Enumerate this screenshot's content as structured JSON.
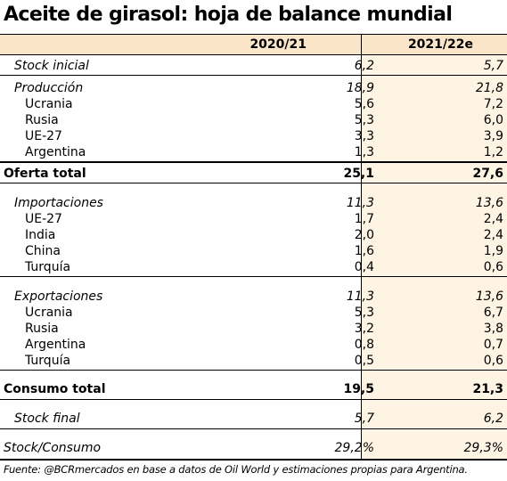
{
  "title": "Aceite de girasol: hoja de balance mundial",
  "columns": [
    "2020/21",
    "2021/22e"
  ],
  "rows": [
    {
      "label": "Stock inicial",
      "v1": "6,2",
      "v2": "5,7"
    },
    {
      "label": "Producción",
      "v1": "18,9",
      "v2": "21,8"
    },
    {
      "label": "Ucrania",
      "v1": "5,6",
      "v2": "7,2"
    },
    {
      "label": "Rusia",
      "v1": "5,3",
      "v2": "6,0"
    },
    {
      "label": "UE-27",
      "v1": "3,3",
      "v2": "3,9"
    },
    {
      "label": "Argentina",
      "v1": "1,3",
      "v2": "1,2"
    },
    {
      "label": "Oferta total",
      "v1": "25,1",
      "v2": "27,6"
    },
    {
      "label": "Importaciones",
      "v1": "11,3",
      "v2": "13,6"
    },
    {
      "label": "UE-27",
      "v1": "1,7",
      "v2": "2,4"
    },
    {
      "label": "India",
      "v1": "2,0",
      "v2": "2,4"
    },
    {
      "label": "China",
      "v1": "1,6",
      "v2": "1,9"
    },
    {
      "label": "Turquía",
      "v1": "0,4",
      "v2": "0,6"
    },
    {
      "label": "Exportaciones",
      "v1": "11,3",
      "v2": "13,6"
    },
    {
      "label": "Ucrania",
      "v1": "5,3",
      "v2": "6,7"
    },
    {
      "label": "Rusia",
      "v1": "3,2",
      "v2": "3,8"
    },
    {
      "label": "Argentina",
      "v1": "0,8",
      "v2": "0,7"
    },
    {
      "label": "Turquía",
      "v1": "0,5",
      "v2": "0,6"
    },
    {
      "label": "Consumo total",
      "v1": "19,5",
      "v2": "21,3"
    },
    {
      "label": "Stock final",
      "v1": "5,7",
      "v2": "6,2"
    },
    {
      "label": "Stock/Consumo",
      "v1": "29,2%",
      "v2": "29,3%"
    }
  ],
  "source": "Fuente: @BCRmercados en base a datos de Oil World y estimaciones propias para Argentina.",
  "colors": {
    "header_bg": "#fbe5c8",
    "highlight_col": "#fdf4e3"
  }
}
